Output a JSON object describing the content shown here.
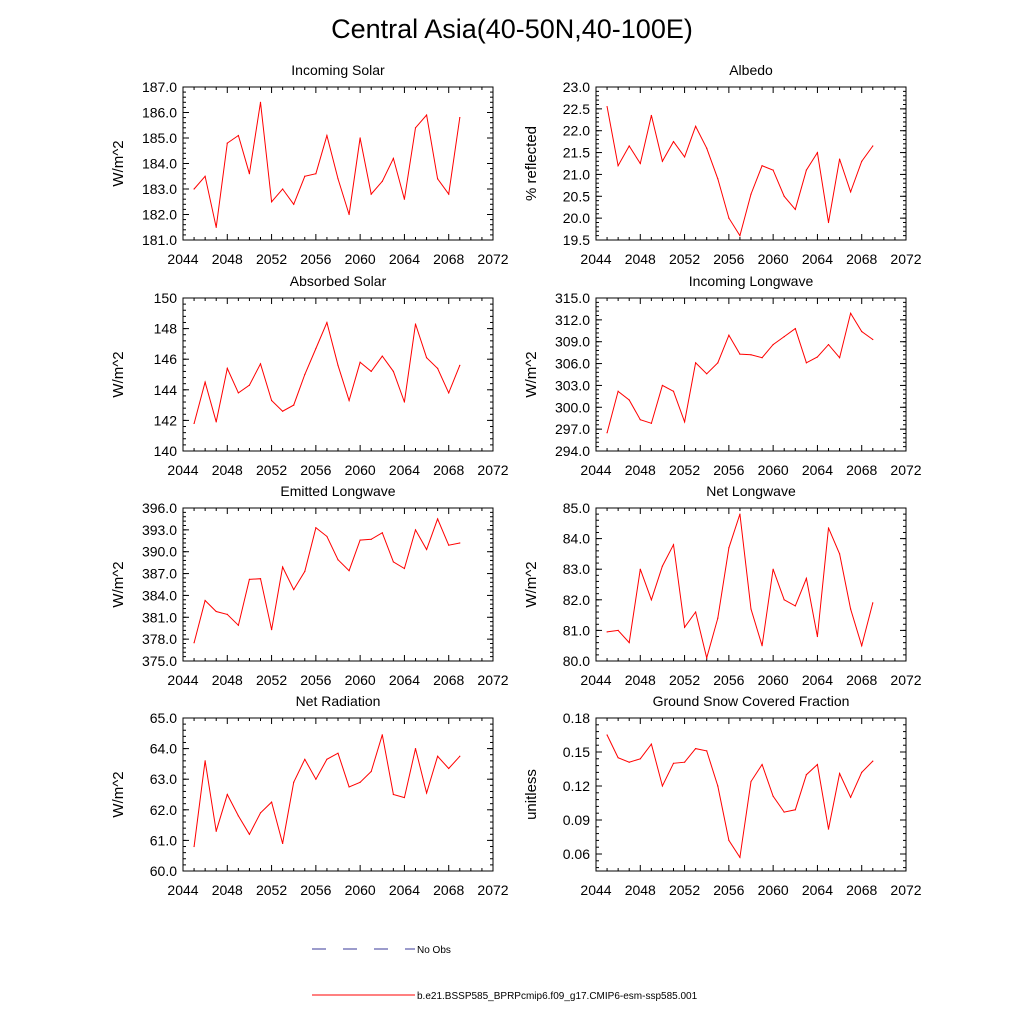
{
  "title": "Central Asia(40-50N,40-100E)",
  "legend": {
    "obs_label": "No Obs",
    "model_label": "b.e21.BSSP585_BPRPcmip6.f09_g17.CMIP6-esm-ssp585.001",
    "obs_color": "#3a3a9a",
    "model_color": "#ff0000"
  },
  "chart_data": [
    {
      "type": "line",
      "title": "Incoming Solar",
      "ylabel": "W/m^2",
      "xlim": [
        2044,
        2072
      ],
      "ylim": [
        181.0,
        187.0
      ],
      "xticks": [
        "2044",
        "2048",
        "2052",
        "2056",
        "2060",
        "2064",
        "2068",
        "2072"
      ],
      "yticks": [
        "181.0",
        "182.0",
        "183.0",
        "184.0",
        "185.0",
        "186.0",
        "187.0"
      ],
      "x": [
        2045,
        2046,
        2047,
        2048,
        2049,
        2050,
        2051,
        2052,
        2053,
        2054,
        2055,
        2056,
        2057,
        2058,
        2059,
        2060,
        2061,
        2062,
        2063,
        2064,
        2065,
        2066,
        2067,
        2068,
        2069
      ],
      "series": [
        {
          "values": [
            183.0,
            183.5,
            181.5,
            184.8,
            185.1,
            183.6,
            186.4,
            182.5,
            183.0,
            182.4,
            183.5,
            183.6,
            185.1,
            183.4,
            182.0,
            185.0,
            182.8,
            183.3,
            184.2,
            182.6,
            185.4,
            185.9,
            183.4,
            182.8,
            185.8
          ]
        }
      ]
    },
    {
      "type": "line",
      "title": "Albedo",
      "ylabel": "% reflected",
      "xlim": [
        2044,
        2072
      ],
      "ylim": [
        19.5,
        23.0
      ],
      "xticks": [
        "2044",
        "2048",
        "2052",
        "2056",
        "2060",
        "2064",
        "2068",
        "2072"
      ],
      "yticks": [
        "19.5",
        "20.0",
        "20.5",
        "21.0",
        "21.5",
        "22.0",
        "22.5",
        "23.0"
      ],
      "x": [
        2045,
        2046,
        2047,
        2048,
        2049,
        2050,
        2051,
        2052,
        2053,
        2054,
        2055,
        2056,
        2057,
        2058,
        2059,
        2060,
        2061,
        2062,
        2063,
        2064,
        2065,
        2066,
        2067,
        2068,
        2069
      ],
      "series": [
        {
          "values": [
            22.55,
            21.2,
            21.65,
            21.25,
            22.35,
            21.3,
            21.75,
            21.4,
            22.1,
            21.6,
            20.9,
            20.0,
            19.6,
            20.55,
            21.2,
            21.1,
            20.5,
            20.2,
            21.1,
            21.5,
            19.9,
            21.35,
            20.6,
            21.3,
            21.65
          ]
        }
      ]
    },
    {
      "type": "line",
      "title": "Absorbed Solar",
      "ylabel": "W/m^2",
      "xlim": [
        2044,
        2072
      ],
      "ylim": [
        140,
        150
      ],
      "xticks": [
        "2044",
        "2048",
        "2052",
        "2056",
        "2060",
        "2064",
        "2068",
        "2072"
      ],
      "yticks": [
        "140",
        "142",
        "144",
        "146",
        "148",
        "150"
      ],
      "x": [
        2045,
        2046,
        2047,
        2048,
        2049,
        2050,
        2051,
        2052,
        2053,
        2054,
        2055,
        2056,
        2057,
        2058,
        2059,
        2060,
        2061,
        2062,
        2063,
        2064,
        2065,
        2066,
        2067,
        2068,
        2069
      ],
      "series": [
        {
          "values": [
            141.8,
            144.5,
            141.9,
            145.4,
            143.8,
            144.3,
            145.7,
            143.3,
            142.6,
            143.0,
            145.0,
            146.7,
            148.4,
            145.6,
            143.3,
            145.8,
            145.2,
            146.2,
            145.2,
            143.2,
            148.3,
            146.1,
            145.4,
            143.8,
            145.6
          ]
        }
      ]
    },
    {
      "type": "line",
      "title": "Incoming Longwave",
      "ylabel": "W/m^2",
      "xlim": [
        2044,
        2072
      ],
      "ylim": [
        294.0,
        315.0
      ],
      "xticks": [
        "2044",
        "2048",
        "2052",
        "2056",
        "2060",
        "2064",
        "2068",
        "2072"
      ],
      "yticks": [
        "294.0",
        "297.0",
        "300.0",
        "303.0",
        "306.0",
        "309.0",
        "312.0",
        "315.0"
      ],
      "x": [
        2045,
        2046,
        2047,
        2048,
        2049,
        2050,
        2051,
        2052,
        2053,
        2054,
        2055,
        2056,
        2057,
        2058,
        2059,
        2060,
        2061,
        2062,
        2063,
        2064,
        2065,
        2066,
        2067,
        2068,
        2069
      ],
      "series": [
        {
          "values": [
            296.5,
            302.2,
            301.0,
            298.3,
            297.8,
            303.0,
            302.2,
            298.0,
            306.1,
            304.6,
            306.1,
            309.9,
            307.3,
            307.2,
            306.8,
            308.6,
            309.7,
            310.8,
            306.1,
            306.9,
            308.6,
            306.8,
            312.9,
            310.4,
            309.3
          ]
        }
      ]
    },
    {
      "type": "line",
      "title": "Emitted Longwave",
      "ylabel": "W/m^2",
      "xlim": [
        2044,
        2072
      ],
      "ylim": [
        375.0,
        396.0
      ],
      "xticks": [
        "2044",
        "2048",
        "2052",
        "2056",
        "2060",
        "2064",
        "2068",
        "2072"
      ],
      "yticks": [
        "375.0",
        "378.0",
        "381.0",
        "384.0",
        "387.0",
        "390.0",
        "393.0",
        "396.0"
      ],
      "x": [
        2045,
        2046,
        2047,
        2048,
        2049,
        2050,
        2051,
        2052,
        2053,
        2054,
        2055,
        2056,
        2057,
        2058,
        2059,
        2060,
        2061,
        2062,
        2063,
        2064,
        2065,
        2066,
        2067,
        2068,
        2069
      ],
      "series": [
        {
          "values": [
            377.5,
            383.3,
            381.8,
            381.4,
            379.9,
            386.2,
            386.3,
            379.3,
            387.9,
            384.8,
            387.3,
            393.3,
            392.1,
            388.9,
            387.4,
            391.6,
            391.7,
            392.6,
            388.6,
            387.7,
            393.0,
            390.3,
            394.5,
            390.9,
            391.2
          ]
        }
      ]
    },
    {
      "type": "line",
      "title": "Net Longwave",
      "ylabel": "W/m^2",
      "xlim": [
        2044,
        2072
      ],
      "ylim": [
        80.0,
        85.0
      ],
      "xticks": [
        "2044",
        "2048",
        "2052",
        "2056",
        "2060",
        "2064",
        "2068",
        "2072"
      ],
      "yticks": [
        "80.0",
        "81.0",
        "82.0",
        "83.0",
        "84.0",
        "85.0"
      ],
      "x": [
        2045,
        2046,
        2047,
        2048,
        2049,
        2050,
        2051,
        2052,
        2053,
        2054,
        2055,
        2056,
        2057,
        2058,
        2059,
        2060,
        2061,
        2062,
        2063,
        2064,
        2065,
        2066,
        2067,
        2068,
        2069
      ],
      "series": [
        {
          "values": [
            80.95,
            81.0,
            80.6,
            83.0,
            82.0,
            83.1,
            83.8,
            81.1,
            81.6,
            80.1,
            81.4,
            83.7,
            84.8,
            81.7,
            80.5,
            83.0,
            82.0,
            81.8,
            82.7,
            80.8,
            84.35,
            83.5,
            81.7,
            80.5,
            81.9
          ]
        }
      ]
    },
    {
      "type": "line",
      "title": "Net Radiation",
      "ylabel": "W/m^2",
      "xlim": [
        2044,
        2072
      ],
      "ylim": [
        60.0,
        65.0
      ],
      "xticks": [
        "2044",
        "2048",
        "2052",
        "2056",
        "2060",
        "2064",
        "2068",
        "2072"
      ],
      "yticks": [
        "60.0",
        "61.0",
        "62.0",
        "63.0",
        "64.0",
        "65.0"
      ],
      "x": [
        2045,
        2046,
        2047,
        2048,
        2049,
        2050,
        2051,
        2052,
        2053,
        2054,
        2055,
        2056,
        2057,
        2058,
        2059,
        2060,
        2061,
        2062,
        2063,
        2064,
        2065,
        2066,
        2067,
        2068,
        2069
      ],
      "series": [
        {
          "values": [
            60.8,
            63.6,
            61.3,
            62.5,
            61.8,
            61.2,
            61.9,
            62.25,
            60.9,
            62.9,
            63.65,
            63.0,
            63.65,
            63.85,
            62.75,
            62.9,
            63.25,
            64.45,
            62.5,
            62.4,
            64.0,
            62.55,
            63.75,
            63.35,
            63.75
          ]
        }
      ]
    },
    {
      "type": "line",
      "title": "Ground Snow Covered Fraction",
      "ylabel": "unitless",
      "xlim": [
        2044,
        2072
      ],
      "ylim": [
        0.045,
        0.18
      ],
      "xticks": [
        "2044",
        "2048",
        "2052",
        "2056",
        "2060",
        "2064",
        "2068",
        "2072"
      ],
      "yticks": [
        "0.06",
        "0.09",
        "0.12",
        "0.15",
        "0.18"
      ],
      "ytick_values": [
        0.06,
        0.09,
        0.12,
        0.15,
        0.18
      ],
      "x": [
        2045,
        2046,
        2047,
        2048,
        2049,
        2050,
        2051,
        2052,
        2053,
        2054,
        2055,
        2056,
        2057,
        2058,
        2059,
        2060,
        2061,
        2062,
        2063,
        2064,
        2065,
        2066,
        2067,
        2068,
        2069
      ],
      "series": [
        {
          "values": [
            0.165,
            0.145,
            0.141,
            0.144,
            0.157,
            0.12,
            0.14,
            0.141,
            0.153,
            0.151,
            0.12,
            0.072,
            0.057,
            0.124,
            0.139,
            0.111,
            0.097,
            0.099,
            0.13,
            0.139,
            0.082,
            0.131,
            0.11,
            0.132,
            0.142
          ]
        }
      ]
    }
  ]
}
